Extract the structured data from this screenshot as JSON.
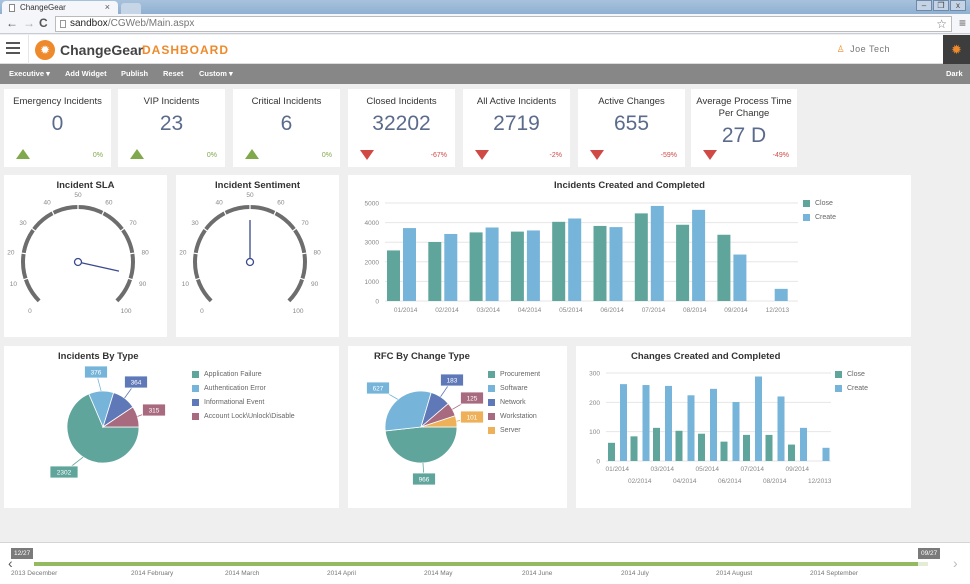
{
  "browser": {
    "tab_title": "ChangeGear",
    "tab_close": "×",
    "url_host": "sandbox",
    "url_path": "/CGWeb/Main.aspx",
    "back": "←",
    "forward": "→",
    "reload": "C",
    "star": "☆",
    "menu": "≡",
    "win_min": "–",
    "win_max": "❐",
    "win_close": "x"
  },
  "header": {
    "brand": "ChangeGear",
    "page": "DASHBOARD",
    "user": "Joe Tech",
    "logo_glyph": "✹",
    "gear_glyph": "✹",
    "user_glyph": "♙",
    "accent": "#ee8a2c"
  },
  "toolbar": {
    "executive": "Executive ▾",
    "add_widget": "Add Widget",
    "publish": "Publish",
    "reset": "Reset",
    "custom": "Custom ▾",
    "theme": "Dark"
  },
  "kpis": [
    {
      "title": "Emergency Incidents",
      "value": "0",
      "trend": "up",
      "pct": "0%"
    },
    {
      "title": "VIP Incidents",
      "value": "23",
      "trend": "up",
      "pct": "0%"
    },
    {
      "title": "Critical Incidents",
      "value": "6",
      "trend": "up",
      "pct": "0%"
    },
    {
      "title": "Closed Incidents",
      "value": "32202",
      "trend": "down",
      "pct": "-67%"
    },
    {
      "title": "All Active Incidents",
      "value": "2719",
      "trend": "down",
      "pct": "-2%"
    },
    {
      "title": "Active Changes",
      "value": "655",
      "trend": "down",
      "pct": "-59%"
    },
    {
      "title": "Average Process Time Per Change",
      "value": "27 D",
      "trend": "down",
      "pct": "-49%"
    }
  ],
  "chart_data": [
    {
      "type": "gauge",
      "title": "Incident SLA",
      "min": 0,
      "max": 100,
      "ticks": [
        "0",
        "10",
        "20",
        "30",
        "40",
        "50",
        "60",
        "70",
        "80",
        "90",
        "100"
      ],
      "value": 88
    },
    {
      "type": "gauge",
      "title": "Incident Sentiment",
      "min": 0,
      "max": 100,
      "ticks": [
        "0",
        "10",
        "20",
        "30",
        "40",
        "50",
        "60",
        "70",
        "80",
        "90",
        "100"
      ],
      "value": 50
    },
    {
      "type": "bar",
      "title": "Incidents Created and Completed",
      "categories": [
        "01/2014",
        "02/2014",
        "03/2014",
        "04/2014",
        "05/2014",
        "06/2014",
        "07/2014",
        "08/2014",
        "09/2014",
        "12/2013"
      ],
      "series": [
        {
          "name": "Close",
          "color": "#5fa59b",
          "values": [
            2580,
            3010,
            3500,
            3540,
            4040,
            3830,
            4470,
            3890,
            3380,
            0
          ]
        },
        {
          "name": "Create",
          "color": "#76b4d9",
          "values": [
            3720,
            3420,
            3750,
            3600,
            4210,
            3770,
            4850,
            4650,
            2370,
            620
          ]
        }
      ],
      "yticks": [
        "0",
        "1000",
        "2000",
        "3000",
        "4000",
        "5000"
      ],
      "ylim": [
        0,
        5000
      ],
      "legend": "right"
    },
    {
      "type": "pie",
      "title": "Incidents By Type",
      "labels": [
        "Application Failure",
        "Authentication Error",
        "Informational Event",
        "Account Lock\\Unlock\\Disable"
      ],
      "values": [
        2302,
        376,
        364,
        315
      ],
      "value_labels": [
        "2302",
        "376",
        "364",
        "315"
      ],
      "colors": [
        "#5fa59b",
        "#76b4d9",
        "#5f79b8",
        "#a86a7e"
      ],
      "legend": "right"
    },
    {
      "type": "pie",
      "title": "RFC By Change Type",
      "labels": [
        "Procurement",
        "Software",
        "Network",
        "Workstation",
        "Server"
      ],
      "values": [
        966,
        627,
        183,
        125,
        101
      ],
      "value_labels": [
        "966",
        "627",
        "183",
        "125",
        "101"
      ],
      "colors": [
        "#5fa59b",
        "#76b4d9",
        "#5f79b8",
        "#a86a7e",
        "#efb05a"
      ],
      "legend": "right"
    },
    {
      "type": "bar",
      "title": "Changes Created and Completed",
      "categories": [
        "01/2014",
        "02/2014",
        "03/2014",
        "04/2014",
        "05/2014",
        "06/2014",
        "07/2014",
        "08/2014",
        "09/2014",
        "12/2013"
      ],
      "series": [
        {
          "name": "Close",
          "color": "#5fa59b",
          "values": [
            62,
            84,
            113,
            103,
            93,
            66,
            89,
            89,
            56,
            0
          ]
        },
        {
          "name": "Create",
          "color": "#76b4d9",
          "values": [
            262,
            259,
            256,
            224,
            246,
            201,
            288,
            220,
            113,
            45
          ]
        }
      ],
      "yticks": [
        "0",
        "100",
        "200",
        "300"
      ],
      "ylim": [
        0,
        300
      ],
      "legend": "right"
    }
  ],
  "timeline": {
    "start_flag": "12/27",
    "end_flag": "09/27",
    "prev": "‹",
    "next": "›",
    "months": [
      "2013 December",
      "2014 February",
      "2014 March",
      "2014 April",
      "2014 May",
      "2014 June",
      "2014 July",
      "2014 August",
      "2014 September"
    ]
  }
}
